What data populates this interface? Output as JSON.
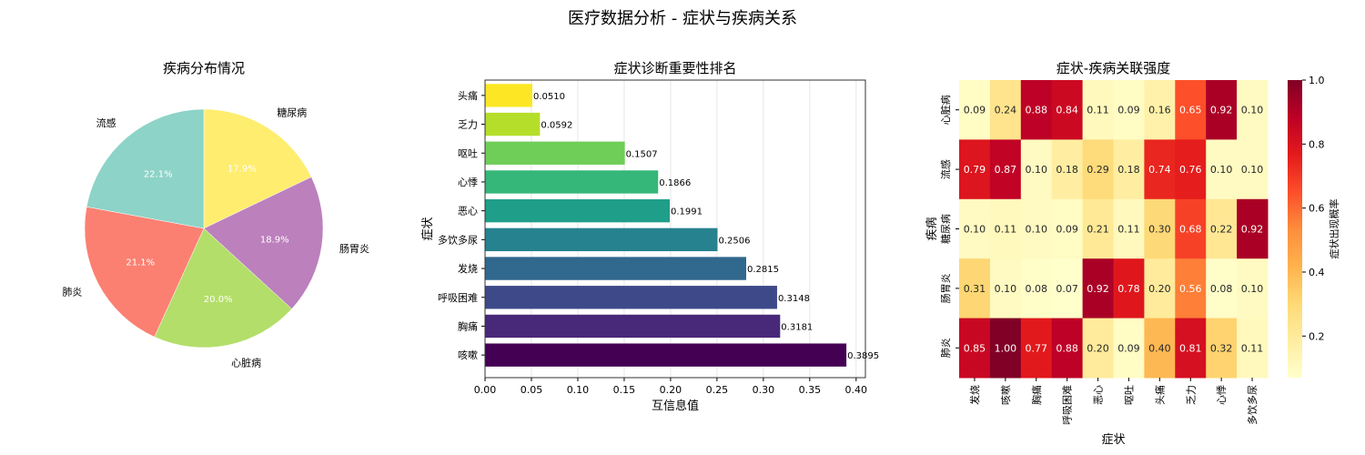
{
  "suptitle": "医疗数据分析 - 症状与疾病关系",
  "chart_data": [
    {
      "type": "pie",
      "title": "疾病分布情况",
      "labels": [
        "糖尿病",
        "肠胃炎",
        "心脏病",
        "肺炎",
        "流感"
      ],
      "values": [
        17.9,
        18.9,
        20.0,
        21.1,
        22.1
      ],
      "pct_labels": [
        "17.9%",
        "18.9%",
        "20.0%",
        "21.1%",
        "22.1%"
      ],
      "colors": [
        "#ffed6f",
        "#bc80bd",
        "#b3de69",
        "#fb8072",
        "#8dd3c7"
      ],
      "start_angle": 90,
      "direction": "clockwise"
    },
    {
      "type": "bar",
      "orientation": "horizontal",
      "title": "症状诊断重要性排名",
      "xlabel": "互信息值",
      "ylabel": "症状",
      "categories": [
        "咳嗽",
        "胸痛",
        "呼吸困难",
        "发烧",
        "多饮多尿",
        "恶心",
        "心悸",
        "呕吐",
        "乏力",
        "头痛"
      ],
      "values": [
        0.3895,
        0.3181,
        0.3148,
        0.2815,
        0.2506,
        0.1991,
        0.1866,
        0.1507,
        0.0592,
        0.051
      ],
      "value_labels": [
        "0.3895",
        "0.3181",
        "0.3148",
        "0.2815",
        "0.2506",
        "0.1991",
        "0.1866",
        "0.1507",
        "0.0592",
        "0.0510"
      ],
      "colors": [
        "#440154",
        "#482878",
        "#3e4989",
        "#31688e",
        "#26828e",
        "#1f9e89",
        "#35b779",
        "#6ece58",
        "#b5de2b",
        "#fde725"
      ],
      "xlim": [
        0,
        0.41
      ],
      "xticks": [
        "0.00",
        "0.05",
        "0.10",
        "0.15",
        "0.20",
        "0.25",
        "0.30",
        "0.35",
        "0.40"
      ],
      "grid": "x"
    },
    {
      "type": "heatmap",
      "title": "症状-疾病关联强度",
      "xlabel": "症状",
      "ylabel": "疾病",
      "x": [
        "发烧",
        "咳嗽",
        "胸痛",
        "呼吸困难",
        "恶心",
        "呕吐",
        "头痛",
        "乏力",
        "心悸",
        "多饮多尿"
      ],
      "y": [
        "心脏病",
        "流感",
        "糖尿病",
        "肠胃炎",
        "肺炎"
      ],
      "values": [
        [
          0.09,
          0.24,
          0.88,
          0.84,
          0.11,
          0.09,
          0.16,
          0.65,
          0.92,
          0.1
        ],
        [
          0.79,
          0.87,
          0.1,
          0.18,
          0.29,
          0.18,
          0.74,
          0.76,
          0.1,
          0.1
        ],
        [
          0.1,
          0.11,
          0.1,
          0.09,
          0.21,
          0.11,
          0.3,
          0.68,
          0.22,
          0.92
        ],
        [
          0.31,
          0.1,
          0.08,
          0.07,
          0.92,
          0.78,
          0.2,
          0.56,
          0.08,
          0.1
        ],
        [
          0.85,
          1.0,
          0.77,
          0.88,
          0.2,
          0.09,
          0.4,
          0.81,
          0.32,
          0.11
        ]
      ],
      "colormap": "YlOrRd",
      "colorbar_label": "症状出现概率",
      "colorbar_ticks": [
        "0.2",
        "0.4",
        "0.6",
        "0.8",
        "1.0"
      ],
      "vmin": 0.07,
      "vmax": 1.0
    }
  ]
}
